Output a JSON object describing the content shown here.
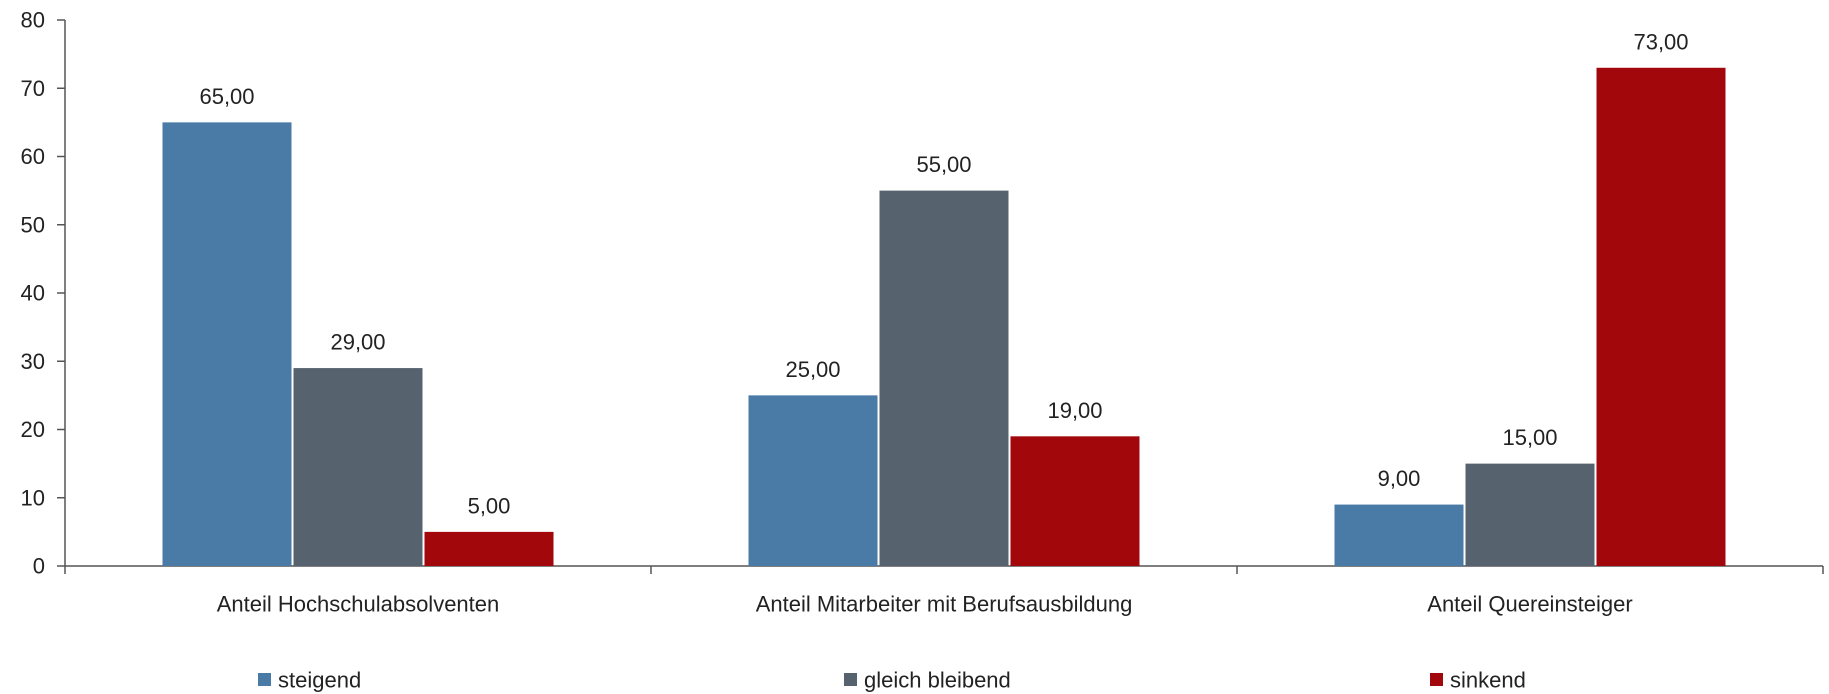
{
  "chart_data": {
    "type": "bar",
    "categories": [
      "Anteil Hochschulabsolventen",
      "Anteil Mitarbeiter mit Berufsausbildung",
      "Anteil Quereinsteiger"
    ],
    "series": [
      {
        "name": "steigend",
        "values": [
          65,
          25,
          9
        ],
        "labels": [
          "65,00",
          "25,00",
          "9,00"
        ],
        "color": "#4a7aa6"
      },
      {
        "name": "gleich bleibend",
        "values": [
          29,
          55,
          15
        ],
        "labels": [
          "29,00",
          "55,00",
          "15,00"
        ],
        "color": "#56636f"
      },
      {
        "name": "sinkend",
        "values": [
          5,
          19,
          73
        ],
        "labels": [
          "5,00",
          "19,00",
          "73,00"
        ],
        "color": "#a2070c"
      }
    ],
    "ylim": [
      0,
      80
    ],
    "yticks": [
      0,
      10,
      20,
      30,
      40,
      50,
      60,
      70,
      80
    ],
    "title": "",
    "xlabel": "",
    "ylabel": "",
    "grid": false,
    "legend_position": "bottom"
  }
}
